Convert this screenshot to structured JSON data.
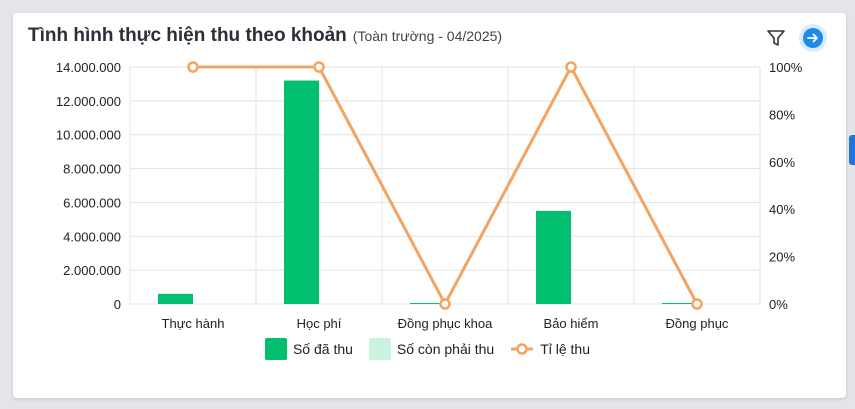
{
  "header": {
    "title": "Tình hình thực hiện thu theo khoản",
    "subtitle": "(Toàn trường - 04/2025)"
  },
  "icons": {
    "filter": "filter-icon",
    "next": "arrow-right-icon"
  },
  "colors": {
    "collected": "#00bf6f",
    "remaining": "#c9f2df",
    "rate": "#f4a460",
    "grid": "#e3e3e3",
    "accent": "#1f8be8"
  },
  "chart_data": {
    "type": "bar",
    "categories": [
      "Thực hành",
      "Học phí",
      "Đồng phục khoa",
      "Bảo hiểm",
      "Đồng phục"
    ],
    "series": [
      {
        "name": "Số đã thu",
        "type": "bar",
        "values": [
          600000,
          13200000,
          0,
          5500000,
          0
        ]
      },
      {
        "name": "Số còn phải thu",
        "type": "bar",
        "values": [
          0,
          0,
          0,
          0,
          0
        ]
      },
      {
        "name": "Tỉ lệ thu",
        "type": "line",
        "axis": "right",
        "values": [
          100,
          100,
          0,
          100,
          0
        ]
      }
    ],
    "y_left": {
      "range": [
        0,
        14000000
      ],
      "ticks": [
        0,
        2000000,
        4000000,
        6000000,
        8000000,
        10000000,
        12000000,
        14000000
      ],
      "tick_labels": [
        "0",
        "2.000.000",
        "4.000.000",
        "6.000.000",
        "8.000.000",
        "10.000.000",
        "12.000.000",
        "14.000.000"
      ]
    },
    "y_right": {
      "range": [
        0,
        100
      ],
      "ticks": [
        0,
        20,
        40,
        60,
        80,
        100
      ],
      "tick_labels": [
        "0%",
        "20%",
        "40%",
        "60%",
        "80%",
        "100%"
      ]
    },
    "grid": true,
    "legend_position": "bottom"
  },
  "legend": [
    {
      "label": "Số đã thu",
      "kind": "box-collected"
    },
    {
      "label": "Số còn phải thu",
      "kind": "box-remaining"
    },
    {
      "label": "Tỉ lệ thu",
      "kind": "line-rate"
    }
  ]
}
